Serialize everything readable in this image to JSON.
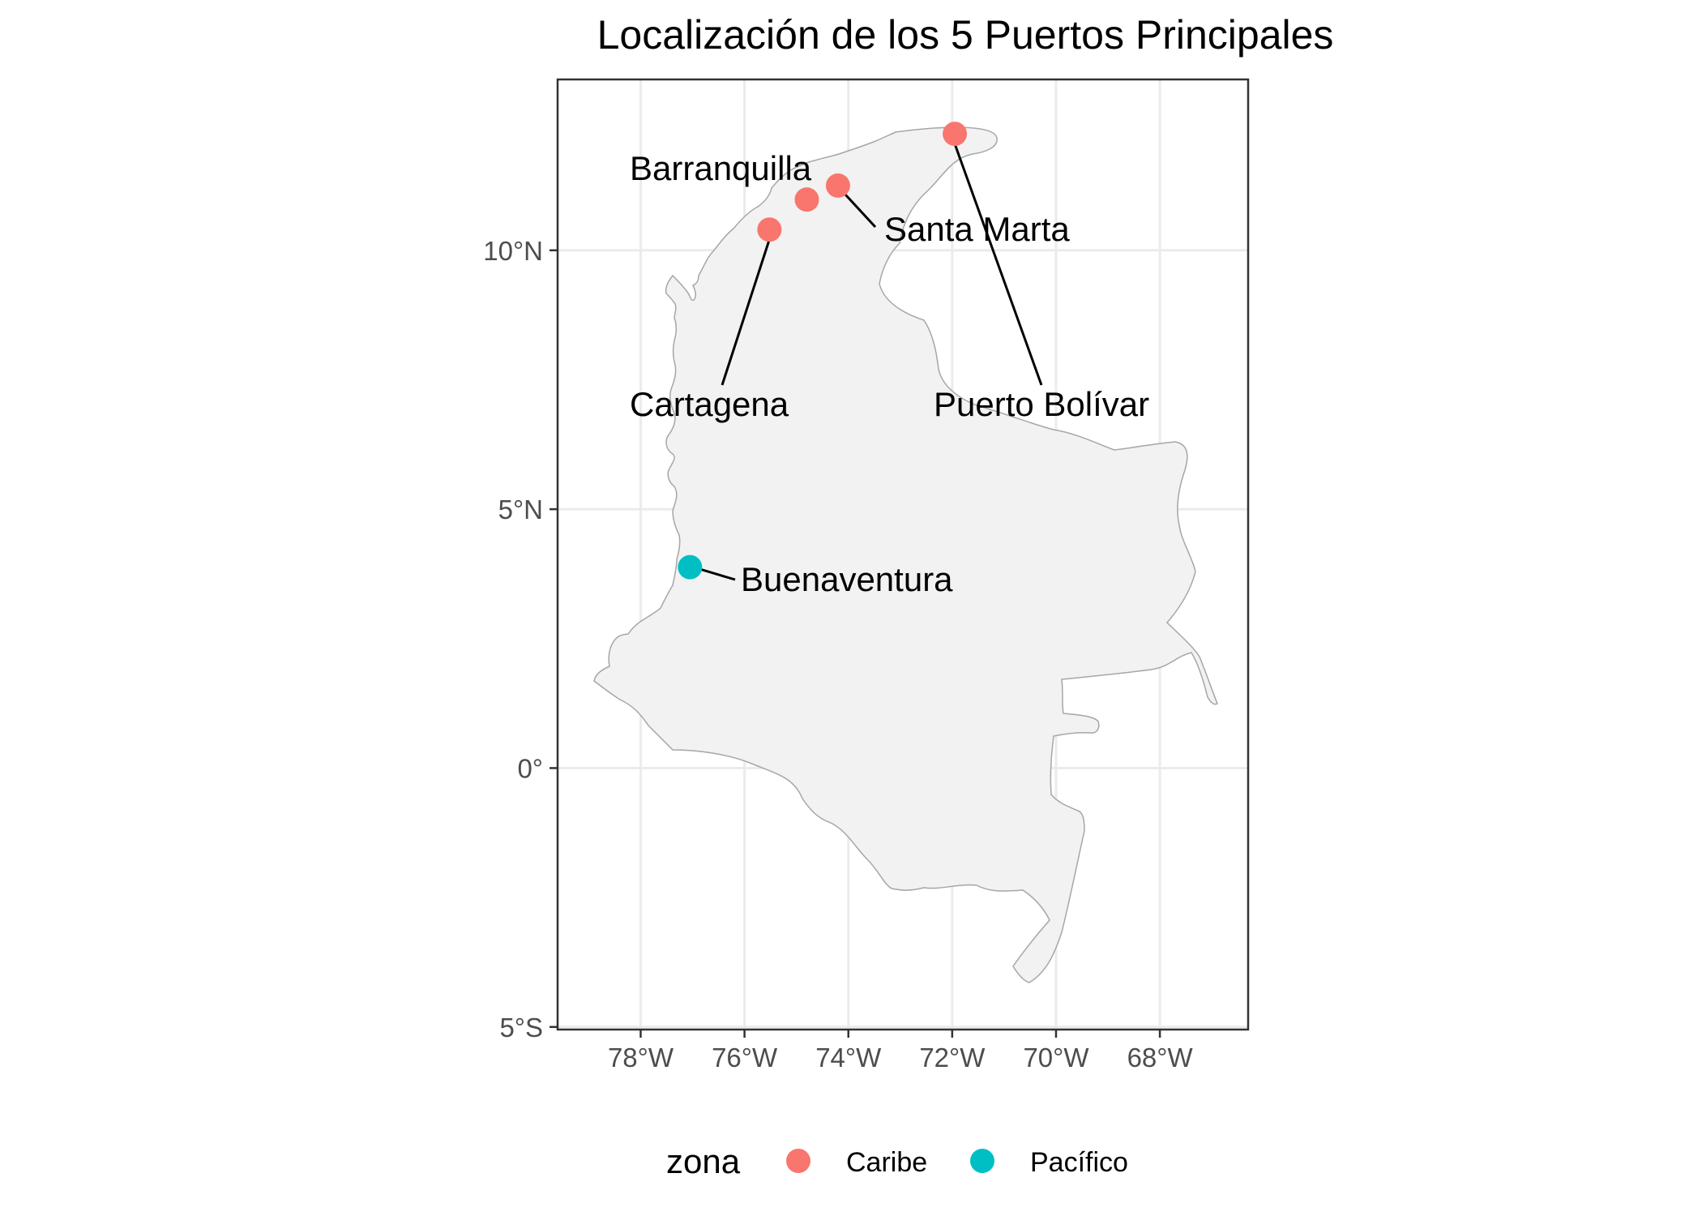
{
  "title": "Localización de los 5 Puertos Principales",
  "colors": {
    "Caribe": "#F8766D",
    "Pacífico": "#00BFC4"
  },
  "axes": {
    "x_ticks": [
      {
        "value": -78,
        "label": "78°W"
      },
      {
        "value": -76,
        "label": "76°W"
      },
      {
        "value": -74,
        "label": "74°W"
      },
      {
        "value": -72,
        "label": "72°W"
      },
      {
        "value": -70,
        "label": "70°W"
      },
      {
        "value": -68,
        "label": "68°W"
      }
    ],
    "y_ticks": [
      {
        "value": 10,
        "label": "10°N"
      },
      {
        "value": 5,
        "label": "5°N"
      },
      {
        "value": 0,
        "label": "0°"
      },
      {
        "value": -5,
        "label": "5°S"
      }
    ],
    "xlim": [
      -79.6,
      -66.3
    ],
    "ylim": [
      -5.05,
      13.3
    ],
    "grid": true
  },
  "ports": [
    {
      "name": "Cartagena",
      "lon": -75.52,
      "lat": 10.4,
      "zona": "Caribe",
      "label": "Cartagena"
    },
    {
      "name": "Barranquilla",
      "lon": -74.8,
      "lat": 10.98,
      "zona": "Caribe",
      "label": "Barranquilla"
    },
    {
      "name": "Santa Marta",
      "lon": -74.2,
      "lat": 11.25,
      "zona": "Caribe",
      "label": "Santa Marta"
    },
    {
      "name": "Puerto Bolívar",
      "lon": -71.95,
      "lat": 12.25,
      "zona": "Caribe",
      "label": "Puerto Bolívar"
    },
    {
      "name": "Buenaventura",
      "lon": -77.05,
      "lat": 3.88,
      "zona": "Pacífico",
      "label": "Buenaventura"
    }
  ],
  "legend": {
    "title": "zona",
    "items": [
      {
        "label": "Caribe",
        "color": "#F8766D"
      },
      {
        "label": "Pacífico",
        "color": "#00BFC4"
      }
    ],
    "position": "bottom"
  },
  "chart_data": {
    "type": "scatter",
    "title": "Localización de los 5 Puertos Principales",
    "xlabel": "",
    "ylabel": "",
    "xlim": [
      -79.6,
      -66.3
    ],
    "ylim": [
      -5.05,
      13.3
    ],
    "grid": true,
    "legend_position": "bottom",
    "series": [
      {
        "name": "Caribe",
        "points": [
          {
            "label": "Cartagena",
            "x": -75.52,
            "y": 10.4
          },
          {
            "label": "Barranquilla",
            "x": -74.8,
            "y": 10.98
          },
          {
            "label": "Santa Marta",
            "x": -74.2,
            "y": 11.25
          },
          {
            "label": "Puerto Bolívar",
            "x": -71.95,
            "y": 12.25
          }
        ]
      },
      {
        "name": "Pacífico",
        "points": [
          {
            "label": "Buenaventura",
            "x": -77.05,
            "y": 3.88
          }
        ]
      }
    ]
  }
}
